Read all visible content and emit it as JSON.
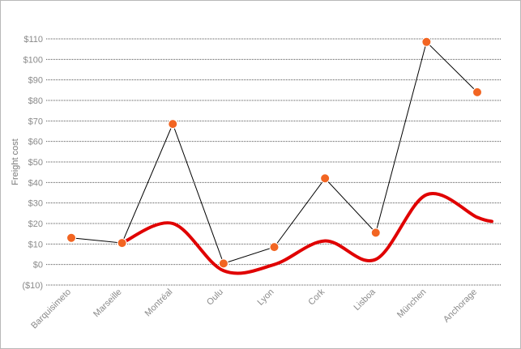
{
  "chart_data": {
    "type": "line",
    "ylabel": "Freight cost",
    "xlabel": "",
    "title": "",
    "categories": [
      "Barquisimeto",
      "Marseille",
      "Montréal",
      "Oulu",
      "Lyon",
      "Cork",
      "Lisboa",
      "München",
      "Anchorage"
    ],
    "y_ticks": [
      "$110",
      "$100",
      "$90",
      "$80",
      "$70",
      "$60",
      "$50",
      "$40",
      "$30",
      "$20",
      "$10",
      "$0",
      "($10)"
    ],
    "ylim": [
      -10,
      110
    ],
    "grid": true,
    "series": [
      {
        "values": [
          13,
          10.5,
          68.5,
          0.5,
          8.5,
          42,
          15.5,
          108.5,
          84
        ],
        "style": "line-markers"
      },
      {
        "values": [
          null,
          10.5,
          20,
          -3,
          0,
          11.5,
          2.5,
          34,
          23
        ],
        "style": "smooth-trend"
      }
    ],
    "colors": {
      "marker": "#f26522",
      "line": "#000000",
      "trend": "#e00000",
      "grid": "#555555"
    }
  }
}
